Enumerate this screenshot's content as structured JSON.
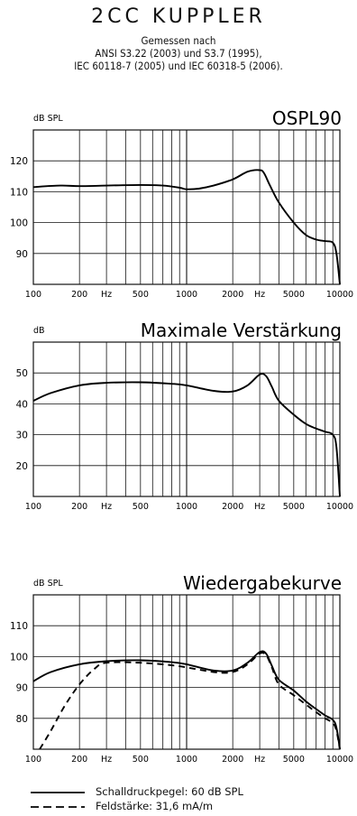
{
  "header": {
    "title": "2CC KUPPLER",
    "lines": [
      "Gemessen nach",
      "ANSI S3.22 (2003) und S3.7 (1995),",
      "IEC 60118-7 (2005) und IEC 60318-5 (2006)."
    ]
  },
  "legend": {
    "solid": "Schalldruckpegel: 60 dB SPL",
    "dashed": "Feldstärke: 31,6 mA/m"
  },
  "chart_data": [
    {
      "type": "line",
      "title": "OSPL90",
      "ylabel": "dB SPL",
      "xlabel": "Hz",
      "xscale": "log",
      "xlim": [
        100,
        10000
      ],
      "ylim": [
        80,
        130
      ],
      "xticks": [
        "100",
        "200",
        "Hz",
        "500",
        "1000",
        "2000",
        "Hz",
        "5000",
        "10000"
      ],
      "yticks": [
        90,
        100,
        110,
        120
      ],
      "grid": true,
      "series": [
        {
          "style": "solid",
          "x": [
            100,
            150,
            200,
            300,
            500,
            700,
            900,
            1000,
            1200,
            1500,
            2000,
            2500,
            3000,
            3200,
            3500,
            4000,
            5000,
            6000,
            7000,
            8000,
            9000,
            9500,
            10000
          ],
          "y": [
            111.5,
            112,
            111.8,
            112,
            112.2,
            112,
            111.3,
            110.8,
            111,
            112,
            114,
            116.5,
            117,
            116,
            112,
            106.5,
            100,
            96,
            94.5,
            94,
            93.5,
            90,
            80
          ]
        }
      ]
    },
    {
      "type": "line",
      "title": "Maximale Verstärkung",
      "ylabel": "dB",
      "xlabel": "Hz",
      "xscale": "log",
      "xlim": [
        100,
        10000
      ],
      "ylim": [
        10,
        60
      ],
      "xticks": [
        "100",
        "200",
        "Hz",
        "500",
        "1000",
        "2000",
        "Hz",
        "5000",
        "10000"
      ],
      "yticks": [
        20,
        30,
        40,
        50
      ],
      "grid": true,
      "series": [
        {
          "style": "solid",
          "x": [
            100,
            130,
            200,
            300,
            500,
            800,
            1000,
            1500,
            2000,
            2500,
            3000,
            3300,
            3600,
            4000,
            5000,
            6000,
            7000,
            8000,
            9000,
            9500,
            10000
          ],
          "y": [
            41,
            43.5,
            46,
            46.8,
            47,
            46.5,
            46,
            44.2,
            44,
            46,
            49.5,
            49,
            45.5,
            41,
            36.5,
            33.5,
            32,
            31,
            30,
            26,
            10
          ]
        }
      ]
    },
    {
      "type": "line",
      "title": "Wiedergabekurve",
      "ylabel": "dB SPL",
      "xlabel": "Hz",
      "xscale": "log",
      "xlim": [
        100,
        10000
      ],
      "ylim": [
        70,
        120
      ],
      "xticks": [
        "100",
        "200",
        "Hz",
        "500",
        "1000",
        "2000",
        "Hz",
        "5000",
        "10000"
      ],
      "yticks": [
        80,
        90,
        100,
        110
      ],
      "grid": true,
      "series": [
        {
          "style": "solid",
          "x": [
            100,
            130,
            200,
            300,
            500,
            800,
            1000,
            1500,
            2000,
            2500,
            3000,
            3300,
            3600,
            4000,
            5000,
            6000,
            7000,
            8000,
            9000,
            9500,
            10000
          ],
          "y": [
            92,
            95,
            97.5,
            98.5,
            98.8,
            98.2,
            97.5,
            95.5,
            95.5,
            98,
            101.5,
            101,
            97,
            92.5,
            89,
            85.5,
            83,
            81,
            79.5,
            77,
            70
          ]
        },
        {
          "style": "dashed",
          "x": [
            110,
            130,
            160,
            200,
            250,
            300,
            500,
            800,
            1000,
            1500,
            2000,
            2500,
            3000,
            3300,
            3600,
            4000,
            5000,
            6000,
            7000,
            8000,
            9000,
            9500,
            10000
          ],
          "y": [
            70,
            76,
            84,
            91,
            96,
            98,
            98,
            97.2,
            96.5,
            95,
            95,
            97.5,
            101,
            100.5,
            96.5,
            91,
            87.5,
            84.5,
            82,
            80,
            78.5,
            76,
            70
          ]
        }
      ]
    }
  ]
}
